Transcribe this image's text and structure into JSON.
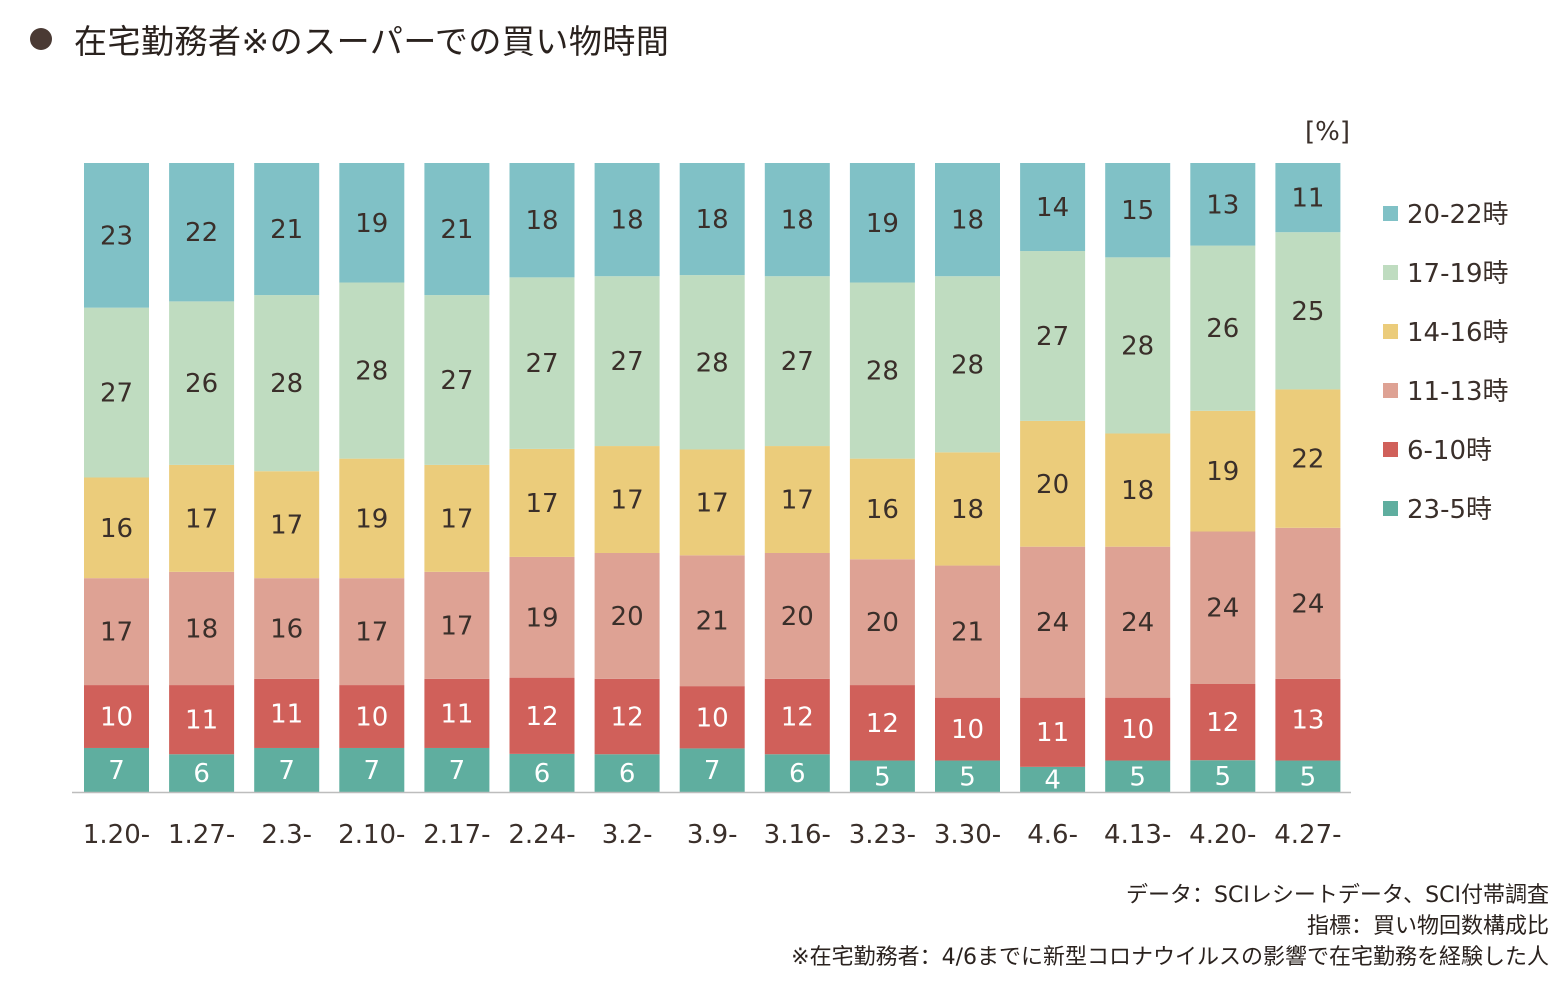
{
  "title": "在宅勤務者※のスーパーでの買い物時間",
  "unit_label": "[%]",
  "notes": [
    "データ：SCIレシートデータ、SCI付帯調査",
    "指標：買い物回数構成比",
    "※在宅勤務者：4/6までに新型コロナウイルスの影響で在宅勤務を経験した人"
  ],
  "chart_data": {
    "type": "bar",
    "stacked": true,
    "percent": true,
    "ylim": [
      0,
      100
    ],
    "grid": false,
    "legend_position": "right",
    "categories": [
      "1.20-",
      "1.27-",
      "2.3-",
      "2.10-",
      "2.17-",
      "2.24-",
      "3.2-",
      "3.9-",
      "3.16-",
      "3.23-",
      "3.30-",
      "4.6-",
      "4.13-",
      "4.20-",
      "4.27-"
    ],
    "series": [
      {
        "name": "23-5時",
        "color": "#5fae9f",
        "label_color": "#ffffff",
        "values": [
          7,
          6,
          7,
          7,
          7,
          6,
          6,
          7,
          6,
          5,
          5,
          4,
          5,
          5,
          5
        ]
      },
      {
        "name": "6-10時",
        "color": "#d0605a",
        "label_color": "#ffffff",
        "values": [
          10,
          11,
          11,
          10,
          11,
          12,
          12,
          10,
          12,
          12,
          10,
          11,
          10,
          12,
          13
        ]
      },
      {
        "name": "11-13時",
        "color": "#dea294",
        "label_color": "#3a2f2a",
        "values": [
          17,
          18,
          16,
          17,
          17,
          19,
          20,
          21,
          20,
          20,
          21,
          24,
          24,
          24,
          24
        ]
      },
      {
        "name": "14-16時",
        "color": "#ebcc7b",
        "label_color": "#3a2f2a",
        "values": [
          16,
          17,
          17,
          19,
          17,
          17,
          17,
          17,
          17,
          16,
          18,
          20,
          18,
          19,
          22
        ]
      },
      {
        "name": "17-19時",
        "color": "#bfdcc0",
        "label_color": "#3a2f2a",
        "values": [
          27,
          26,
          28,
          28,
          27,
          27,
          27,
          28,
          27,
          28,
          28,
          27,
          28,
          26,
          25
        ]
      },
      {
        "name": "20-22時",
        "color": "#80c1c6",
        "label_color": "#3a2f2a",
        "values": [
          23,
          22,
          21,
          19,
          21,
          18,
          18,
          18,
          18,
          19,
          18,
          14,
          15,
          13,
          11
        ]
      }
    ]
  }
}
